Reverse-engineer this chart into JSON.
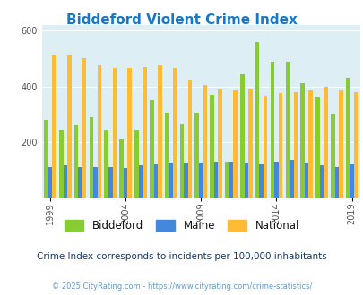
{
  "title": "Biddeford Violent Crime Index",
  "title_color": "#1878c8",
  "subtitle": "Crime Index corresponds to incidents per 100,000 inhabitants",
  "subtitle_color": "#1a3a6a",
  "footer": "© 2025 CityRating.com - https://www.cityrating.com/crime-statistics/",
  "footer_color": "#6699cc",
  "years": [
    1999,
    2000,
    2001,
    2002,
    2003,
    2004,
    2005,
    2006,
    2007,
    2008,
    2009,
    2010,
    2011,
    2012,
    2013,
    2014,
    2015,
    2016,
    2017,
    2018,
    2019,
    2020
  ],
  "biddeford": [
    280,
    245,
    260,
    290,
    245,
    210,
    245,
    350,
    305,
    265,
    305,
    370,
    130,
    445,
    560,
    490,
    490,
    410,
    360,
    300,
    430,
    0
  ],
  "maine": [
    110,
    115,
    110,
    110,
    110,
    105,
    115,
    120,
    125,
    125,
    125,
    128,
    128,
    125,
    122,
    130,
    135,
    125,
    115,
    110,
    120,
    0
  ],
  "national": [
    510,
    510,
    500,
    475,
    465,
    465,
    470,
    475,
    465,
    425,
    405,
    390,
    385,
    390,
    365,
    375,
    380,
    385,
    400,
    385,
    380,
    0
  ],
  "biddeford_color": "#88cc33",
  "maine_color": "#4488dd",
  "national_color": "#ffbb33",
  "bg_color": "#ddeef5",
  "ylim": [
    0,
    620
  ],
  "yticks": [
    0,
    200,
    400,
    600
  ],
  "tick_years": [
    1999,
    2004,
    2009,
    2014,
    2019
  ],
  "bar_width": 0.27,
  "figsize": [
    4.06,
    3.3
  ],
  "dpi": 100
}
